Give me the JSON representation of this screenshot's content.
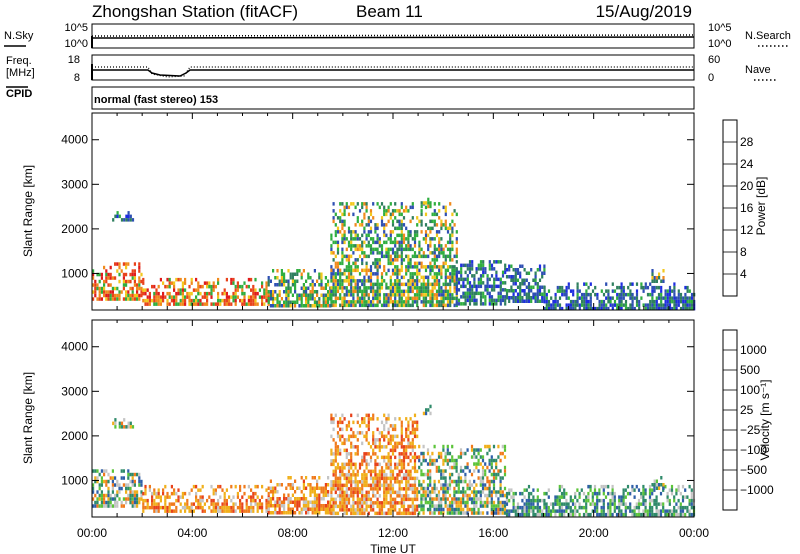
{
  "header": {
    "station": "Zhongshan Station (fitACF)",
    "beam": "Beam 11",
    "date": "15/Aug/2019",
    "mode": "normal (fast stereo) 153"
  },
  "noise_panel": {
    "left_label": "N.Sky",
    "right_label": "N.Search",
    "left_ticks": [
      "10^5",
      "10^0"
    ],
    "right_ticks": [
      "10^5",
      "10^0"
    ]
  },
  "freq_panel": {
    "label_line1": "Freq.",
    "label_line2": "[MHz]",
    "cpid_label": "CPID",
    "left_ticks": [
      "18",
      "8"
    ],
    "right_ticks": [
      "60",
      "0"
    ],
    "right_label": "Nave"
  },
  "axes": {
    "ylabel": "Slant Range [km]",
    "xlabel": "Time UT",
    "y_ticks": [
      "1000",
      "2000",
      "3000",
      "4000"
    ],
    "x_ticks": [
      "00:00",
      "04:00",
      "08:00",
      "12:00",
      "16:00",
      "20:00",
      "00:00"
    ]
  },
  "colorbars": {
    "power": {
      "label": "Power [dB]",
      "ticks": [
        "4",
        "8",
        "12",
        "16",
        "20",
        "24",
        "28"
      ],
      "colors": [
        "#1f2de0",
        "#2e4fb3",
        "#2f7f5f",
        "#2fae3f",
        "#f2c81d",
        "#f08a1c",
        "#e8421b",
        "#e01b1b"
      ]
    },
    "velocity": {
      "label": "Velocity [m s⁻¹]",
      "ticks": [
        "1000",
        "500",
        "100",
        "25",
        "−25",
        "−100",
        "−500",
        "−1000"
      ],
      "colors": [
        "#2236c6",
        "#2f5fa8",
        "#2f8a6a",
        "#5cc43a",
        "#c4c4c4",
        "#f0b01c",
        "#f07a1c",
        "#e8421b",
        "#e01b1b"
      ]
    }
  },
  "chart_data": {
    "type": "heatmap",
    "x_unit": "hours UT",
    "xlim": [
      0,
      24
    ],
    "y_unit": "km",
    "ylim": [
      180,
      4600
    ],
    "power_regions": [
      {
        "t0": 0.0,
        "t1": 2.0,
        "r0": 400,
        "r1": 1250,
        "level": "high"
      },
      {
        "t0": 2.0,
        "t1": 7.0,
        "r0": 300,
        "r1": 900,
        "level": "high"
      },
      {
        "t0": 7.0,
        "t1": 9.5,
        "r0": 300,
        "r1": 1100,
        "level": "mid"
      },
      {
        "t0": 9.5,
        "t1": 14.5,
        "r0": 300,
        "r1": 2600,
        "level": "mid"
      },
      {
        "t0": 14.5,
        "t1": 16.5,
        "r0": 300,
        "r1": 1300,
        "level": "low"
      },
      {
        "t0": 16.5,
        "t1": 18.0,
        "r0": 400,
        "r1": 1200,
        "level": "low"
      },
      {
        "t0": 18.0,
        "t1": 24.0,
        "r0": 250,
        "r1": 800,
        "level": "low"
      }
    ],
    "power_patches": [
      {
        "t0": 0.8,
        "t1": 1.6,
        "r0": 2200,
        "r1": 2400,
        "level": "low"
      },
      {
        "t0": 13.1,
        "t1": 13.5,
        "r0": 2500,
        "r1": 2700,
        "level": "mid"
      },
      {
        "t0": 22.3,
        "t1": 22.8,
        "r0": 800,
        "r1": 1100,
        "level": "mid"
      }
    ],
    "velocity_regions": [
      {
        "t0": 0.0,
        "t1": 2.0,
        "r0": 400,
        "r1": 1250,
        "sign": "mixed"
      },
      {
        "t0": 2.0,
        "t1": 7.0,
        "r0": 300,
        "r1": 900,
        "sign": "away"
      },
      {
        "t0": 7.0,
        "t1": 9.5,
        "r0": 300,
        "r1": 1100,
        "sign": "away"
      },
      {
        "t0": 9.5,
        "t1": 13.0,
        "r0": 300,
        "r1": 2500,
        "sign": "away"
      },
      {
        "t0": 13.0,
        "t1": 16.5,
        "r0": 300,
        "r1": 1800,
        "sign": "mixed"
      },
      {
        "t0": 16.5,
        "t1": 24.0,
        "r0": 250,
        "r1": 900,
        "sign": "toward"
      }
    ]
  }
}
